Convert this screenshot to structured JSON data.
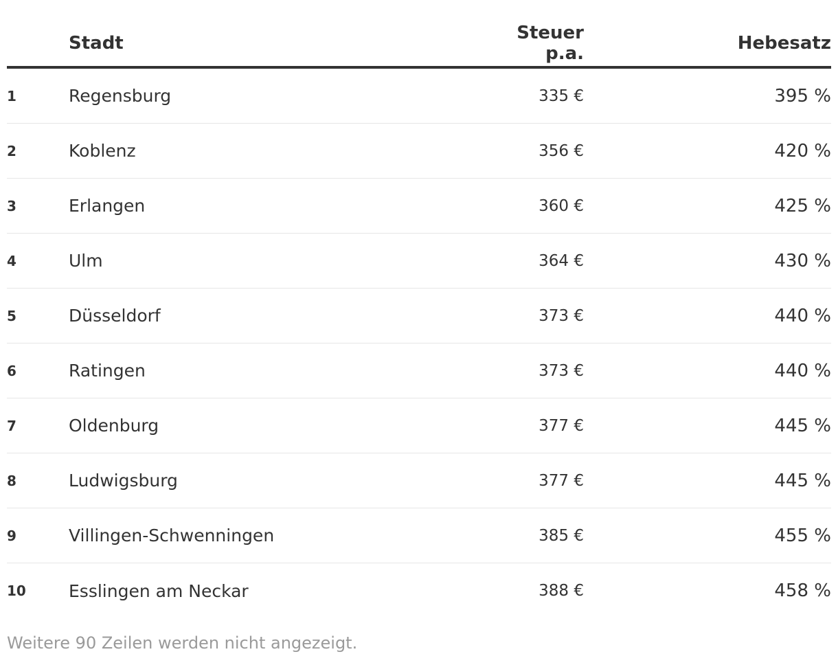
{
  "chart_data": {
    "type": "table",
    "columns": [
      "",
      "Stadt",
      "Steuer p.a.",
      "Hebesatz"
    ],
    "rows": [
      {
        "rank": "1",
        "city": "Regensburg",
        "tax": "335 €",
        "rate": "395 %"
      },
      {
        "rank": "2",
        "city": "Koblenz",
        "tax": "356 €",
        "rate": "420 %"
      },
      {
        "rank": "3",
        "city": "Erlangen",
        "tax": "360 €",
        "rate": "425 %"
      },
      {
        "rank": "4",
        "city": "Ulm",
        "tax": "364 €",
        "rate": "430 %"
      },
      {
        "rank": "5",
        "city": "Düsseldorf",
        "tax": "373 €",
        "rate": "440 %"
      },
      {
        "rank": "6",
        "city": "Ratingen",
        "tax": "373 €",
        "rate": "440 %"
      },
      {
        "rank": "7",
        "city": "Oldenburg",
        "tax": "377 €",
        "rate": "445 %"
      },
      {
        "rank": "8",
        "city": "Ludwigsburg",
        "tax": "377 €",
        "rate": "445 %"
      },
      {
        "rank": "9",
        "city": "Villingen-Schwenningen",
        "tax": "385 €",
        "rate": "455 %"
      },
      {
        "rank": "10",
        "city": "Esslingen am Neckar",
        "tax": "388 €",
        "rate": "458 %"
      }
    ],
    "footer_note": "Weitere 90 Zeilen werden nicht angezeigt."
  }
}
